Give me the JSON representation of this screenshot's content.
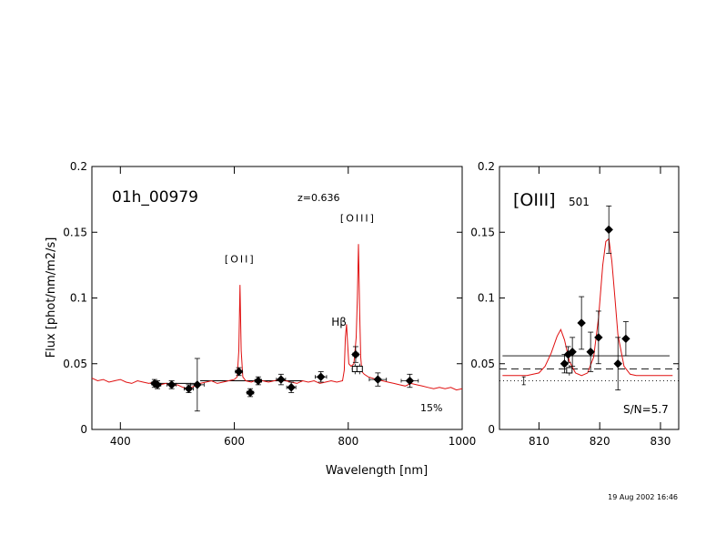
{
  "footer": {
    "timestamp": "19 Aug 2002 16:46"
  },
  "chart_data": [
    {
      "type": "line",
      "object_id": "01h_00979",
      "redshift_label": "z=0.636",
      "xlabel": "Wavelength  [nm]",
      "ylabel": "Flux  [phot/nm/m2/s]",
      "xlim": [
        350,
        1000
      ],
      "ylim": [
        0,
        0.2
      ],
      "xticks": [
        "400",
        "600",
        "800",
        "1000"
      ],
      "yticks": [
        "0",
        "0.05",
        "0.1",
        "0.15",
        "0.2"
      ],
      "percent_label": "15%",
      "line_labels": [
        {
          "text": "[OII]",
          "x": 610,
          "y": 0.127
        },
        {
          "text": "Hβ",
          "x": 797,
          "y": 0.079
        },
        {
          "text": "[OIII]",
          "x": 817,
          "y": 0.158
        }
      ],
      "model_spectrum": {
        "color": "#e01010",
        "x": [
          350,
          360,
          370,
          380,
          390,
          400,
          410,
          420,
          430,
          440,
          450,
          460,
          470,
          480,
          490,
          500,
          510,
          520,
          530,
          540,
          550,
          560,
          570,
          580,
          590,
          600,
          605,
          608,
          610,
          612,
          615,
          620,
          630,
          640,
          650,
          660,
          670,
          680,
          690,
          700,
          710,
          720,
          730,
          740,
          750,
          760,
          770,
          780,
          790,
          793,
          795,
          797,
          799,
          801,
          805,
          810,
          814,
          816,
          818,
          820,
          822,
          824,
          828,
          835,
          850,
          860,
          870,
          880,
          890,
          900,
          910,
          920,
          930,
          940,
          950,
          960,
          970,
          980,
          990,
          1000
        ],
        "y": [
          0.039,
          0.037,
          0.038,
          0.036,
          0.037,
          0.038,
          0.036,
          0.035,
          0.037,
          0.036,
          0.035,
          0.036,
          0.034,
          0.035,
          0.033,
          0.034,
          0.032,
          0.031,
          0.033,
          0.035,
          0.036,
          0.037,
          0.035,
          0.036,
          0.037,
          0.038,
          0.04,
          0.06,
          0.11,
          0.06,
          0.04,
          0.037,
          0.036,
          0.038,
          0.037,
          0.036,
          0.037,
          0.038,
          0.037,
          0.036,
          0.035,
          0.037,
          0.036,
          0.037,
          0.035,
          0.036,
          0.037,
          0.036,
          0.037,
          0.045,
          0.07,
          0.08,
          0.065,
          0.05,
          0.048,
          0.05,
          0.07,
          0.1,
          0.141,
          0.09,
          0.055,
          0.044,
          0.042,
          0.04,
          0.038,
          0.037,
          0.036,
          0.035,
          0.034,
          0.033,
          0.035,
          0.034,
          0.033,
          0.032,
          0.031,
          0.032,
          0.031,
          0.032,
          0.03,
          0.031
        ]
      },
      "photometry": [
        {
          "x": 460,
          "y": 0.035,
          "xerr": 5,
          "yerr": 0.003
        },
        {
          "x": 465,
          "y": 0.034,
          "xerr": 6,
          "yerr": 0.003
        },
        {
          "x": 490,
          "y": 0.034,
          "xerr": 8,
          "yerr": 0.003
        },
        {
          "x": 520,
          "y": 0.031,
          "xerr": 8,
          "yerr": 0.003
        },
        {
          "x": 535,
          "y": 0.034,
          "xerr": 12,
          "yerr": 0.02
        },
        {
          "x": 608,
          "y": 0.044,
          "xerr": 6,
          "yerr": 0.003
        },
        {
          "x": 628,
          "y": 0.028,
          "xerr": 6,
          "yerr": 0.003
        },
        {
          "x": 642,
          "y": 0.037,
          "xerr": 6,
          "yerr": 0.003
        },
        {
          "x": 682,
          "y": 0.038,
          "xerr": 8,
          "yerr": 0.004
        },
        {
          "x": 700,
          "y": 0.032,
          "xerr": 8,
          "yerr": 0.004
        },
        {
          "x": 752,
          "y": 0.04,
          "xerr": 10,
          "yerr": 0.004
        },
        {
          "x": 813,
          "y": 0.057,
          "xerr": 5,
          "yerr": 0.006
        },
        {
          "x": 852,
          "y": 0.038,
          "xerr": 15,
          "yerr": 0.005
        },
        {
          "x": 908,
          "y": 0.037,
          "xerr": 15,
          "yerr": 0.005
        }
      ],
      "open_points": [
        {
          "x": 812,
          "y": 0.046,
          "xerr": 6,
          "yerr": 0.004
        },
        {
          "x": 820,
          "y": 0.046,
          "xerr": 3,
          "yerr": 0.004
        }
      ],
      "broadband": [
        {
          "x1": 455,
          "x2": 530,
          "y": 0.035
        },
        {
          "x1": 540,
          "x2": 720,
          "y": 0.037
        }
      ]
    },
    {
      "type": "line",
      "panel_label": "[OIII]",
      "panel_sublabel": "501",
      "xlim": [
        803.5,
        833
      ],
      "ylim": [
        0,
        0.2
      ],
      "xticks": [
        "810",
        "820",
        "830"
      ],
      "yticks": [
        "0",
        "0.05",
        "0.1",
        "0.15",
        "0.2"
      ],
      "snr_label": "S/N=5.7",
      "model": {
        "color": "#e01010",
        "x": [
          804,
          806,
          808,
          810,
          811,
          812,
          813,
          813.6,
          814.2,
          815,
          816,
          817,
          818,
          819,
          819.8,
          820.5,
          821,
          821.5,
          822,
          822.5,
          823,
          824,
          825,
          826,
          828,
          830,
          832
        ],
        "y": [
          0.041,
          0.041,
          0.041,
          0.043,
          0.048,
          0.058,
          0.071,
          0.076,
          0.068,
          0.052,
          0.043,
          0.041,
          0.043,
          0.055,
          0.085,
          0.125,
          0.143,
          0.145,
          0.128,
          0.1,
          0.072,
          0.048,
          0.042,
          0.041,
          0.041,
          0.041,
          0.041
        ]
      },
      "photometry": [
        {
          "x": 814.2,
          "y": 0.05,
          "yerr": 0.007
        },
        {
          "x": 814.8,
          "y": 0.057,
          "yerr": 0.006
        },
        {
          "x": 815.5,
          "y": 0.059,
          "yerr": 0.011
        },
        {
          "x": 817.0,
          "y": 0.081,
          "yerr": 0.02
        },
        {
          "x": 818.5,
          "y": 0.059,
          "yerr": 0.015
        },
        {
          "x": 819.8,
          "y": 0.07,
          "yerr": 0.02
        },
        {
          "x": 821.5,
          "y": 0.152,
          "yerr": 0.018
        },
        {
          "x": 823.0,
          "y": 0.05,
          "yerr": 0.02
        },
        {
          "x": 824.3,
          "y": 0.069,
          "yerr": 0.013
        }
      ],
      "open_point": {
        "x": 815.0,
        "y": 0.045,
        "yerr": 0.004
      },
      "reference_lines": [
        {
          "style": "solid",
          "y": 0.056,
          "x1": 804,
          "x2": 831.5
        },
        {
          "style": "dashed",
          "y": 0.046
        },
        {
          "style": "dotted",
          "y": 0.037
        }
      ],
      "small_point": {
        "x": 807.5,
        "y": 0.037,
        "yerr": 0.003
      }
    }
  ]
}
